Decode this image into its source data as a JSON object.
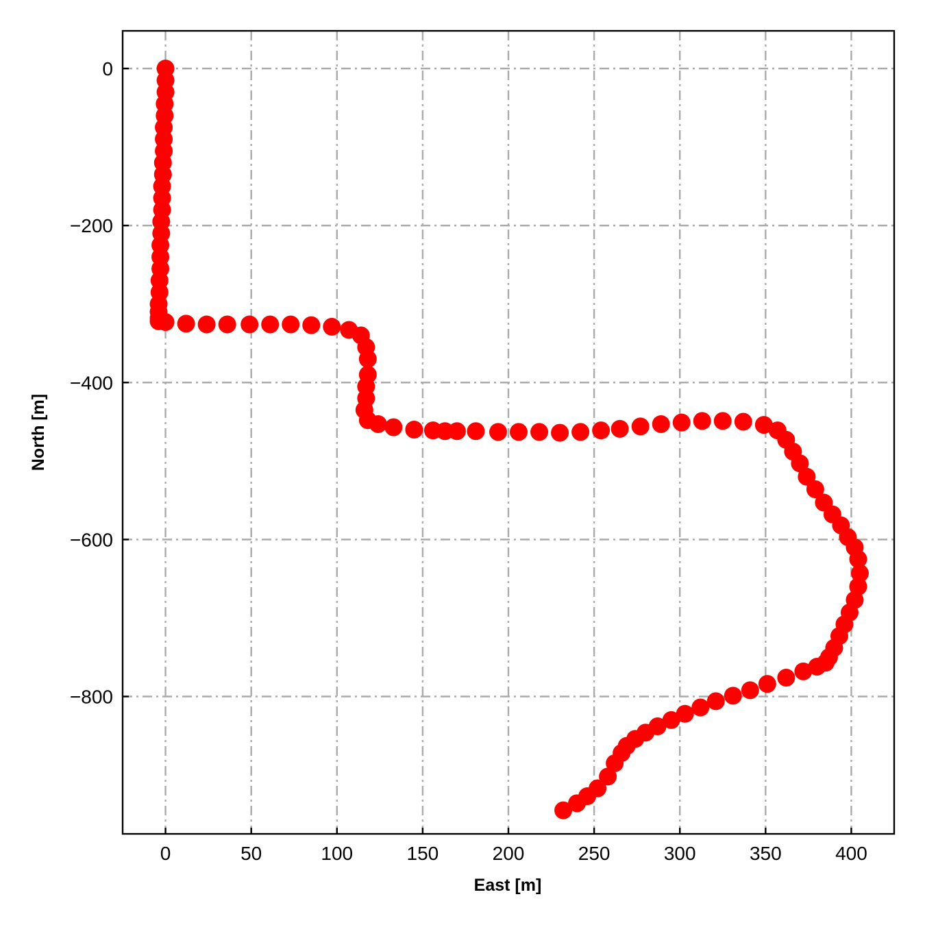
{
  "chart_data": {
    "type": "scatter",
    "xlabel": "East [m]",
    "ylabel": "North [m]",
    "xlim": [
      -25,
      425
    ],
    "ylim": [
      -975,
      48
    ],
    "xticks": [
      0,
      50,
      100,
      150,
      200,
      250,
      300,
      350,
      400
    ],
    "yticks": [
      0,
      -200,
      -400,
      -600,
      -800
    ],
    "xtick_labels": [
      "0",
      "50",
      "100",
      "150",
      "200",
      "250",
      "300",
      "350",
      "400"
    ],
    "ytick_labels": [
      "0",
      "−200",
      "−400",
      "−600",
      "−800"
    ],
    "grid": true,
    "marker_color": "#ff0000",
    "series": [
      {
        "x": [
          0,
          0,
          0,
          -0.5,
          -0.5,
          -1,
          -1,
          -1,
          -1.5,
          -1.5,
          -2,
          -2,
          -2,
          -2.5,
          -2.5,
          -3,
          -3,
          -3,
          -3.5,
          -3.5,
          -4,
          -4,
          -4,
          -4,
          0,
          12,
          24,
          36,
          49,
          61,
          73,
          85,
          97,
          107,
          114,
          117,
          118,
          118,
          117,
          117,
          116,
          118,
          124,
          133,
          145,
          156,
          163,
          170,
          181,
          194,
          206,
          218,
          230,
          242,
          254,
          265,
          277,
          289,
          301,
          313,
          325,
          337,
          349,
          357,
          362,
          366,
          370,
          374,
          379,
          384,
          389,
          394,
          398,
          402,
          404,
          405,
          404,
          402,
          399,
          396,
          393,
          390,
          387,
          385,
          380,
          372,
          362,
          351,
          341,
          331,
          321,
          312,
          303,
          295,
          287,
          280,
          274,
          269,
          266,
          262,
          258,
          252,
          246,
          240,
          232
        ],
        "y": [
          0,
          -15,
          -30,
          -45,
          -60,
          -75,
          -90,
          -105,
          -120,
          -135,
          -150,
          -165,
          -180,
          -195,
          -210,
          -225,
          -240,
          -255,
          -270,
          -285,
          -300,
          -310,
          -318,
          -322,
          -323,
          -325,
          -326,
          -326,
          -326,
          -326,
          -326,
          -327,
          -329,
          -333,
          -340,
          -355,
          -370,
          -390,
          -405,
          -420,
          -435,
          -448,
          -453,
          -457,
          -460,
          -461,
          -462,
          -462,
          -462,
          -463,
          -463,
          -463,
          -464,
          -463,
          -461,
          -459,
          -456,
          -453,
          -451,
          -449,
          -449,
          -450,
          -454,
          -461,
          -473,
          -488,
          -503,
          -520,
          -536,
          -553,
          -568,
          -582,
          -597,
          -610,
          -625,
          -643,
          -660,
          -677,
          -693,
          -708,
          -723,
          -738,
          -750,
          -757,
          -762,
          -768,
          -776,
          -784,
          -792,
          -799,
          -806,
          -814,
          -822,
          -830,
          -838,
          -846,
          -854,
          -863,
          -872,
          -885,
          -902,
          -917,
          -927,
          -936,
          -945
        ]
      }
    ]
  }
}
